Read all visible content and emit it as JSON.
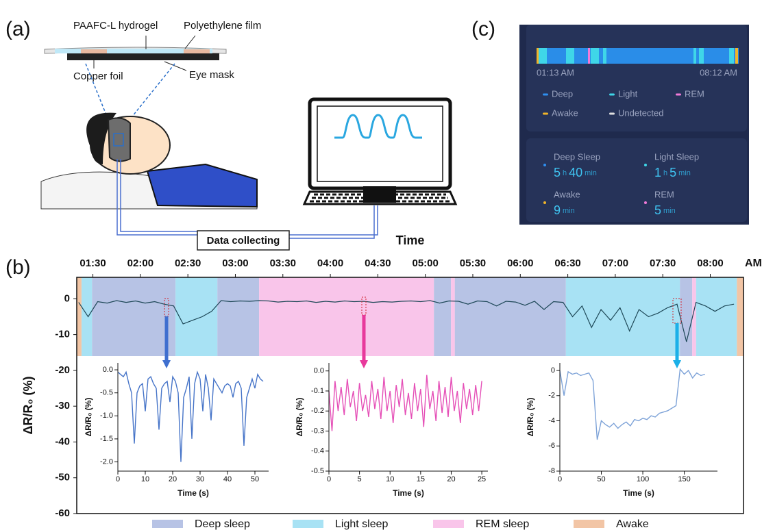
{
  "panel_labels": [
    "(a)",
    "(b)",
    "(c)"
  ],
  "illustration": {
    "labels": [
      "PAAFC-L hydrogel",
      "Polyethylene film",
      "Copper foil",
      "Eye mask"
    ],
    "data_box": "Data collecting"
  },
  "app": {
    "start": "01:13 AM",
    "end": "08:12 AM",
    "legend": [
      {
        "name": "Deep",
        "color": "#2f8ff0"
      },
      {
        "name": "Light",
        "color": "#3fd6e8"
      },
      {
        "name": "REM",
        "color": "#f07ad8"
      },
      {
        "name": "Awake",
        "color": "#f0b429"
      },
      {
        "name": "Undetected",
        "color": "#e0e0e0"
      }
    ],
    "stats": [
      {
        "label": "Deep Sleep",
        "parts": [
          5,
          "h",
          40,
          "min"
        ]
      },
      {
        "label": "Light Sleep",
        "parts": [
          1,
          "h",
          5,
          "min"
        ]
      },
      {
        "label": "Awake",
        "parts": [
          9,
          "min"
        ]
      },
      {
        "label": "REM",
        "parts": [
          5,
          "min"
        ]
      }
    ]
  },
  "chart_data": [
    {
      "type": "line",
      "x_label": "Time",
      "x_unit": "AM",
      "x_axis": "top",
      "y_label": "ΔR/R₀ (%)",
      "color": "#1d4756",
      "xlim": [
        1.33,
        8.35
      ],
      "ylim": [
        -60,
        6
      ],
      "xticks": [
        {
          "value": 1.5,
          "label": "01:30"
        },
        {
          "value": 2,
          "label": "02:00"
        },
        {
          "value": 2.5,
          "label": "02:30"
        },
        {
          "value": 3,
          "label": "03:00"
        },
        {
          "value": 3.5,
          "label": "03:30"
        },
        {
          "value": 4,
          "label": "04:00"
        },
        {
          "value": 4.5,
          "label": "04:30"
        },
        {
          "value": 5,
          "label": "05:00"
        },
        {
          "value": 5.5,
          "label": "05:30"
        },
        {
          "value": 6,
          "label": "06:00"
        },
        {
          "value": 6.5,
          "label": "06:30"
        },
        {
          "value": 7,
          "label": "07:00"
        },
        {
          "value": 7.5,
          "label": "07:30"
        },
        {
          "value": 8,
          "label": "08:00"
        }
      ],
      "yticks": [
        0,
        -10,
        -20,
        -30,
        -40,
        -50,
        -60
      ],
      "band_bottom": -16,
      "stages": [
        {
          "name": "Deep sleep",
          "color": "#b7c3e5",
          "intervals": [
            [
              1.49,
              2.37
            ],
            [
              2.81,
              3.25
            ],
            [
              5.09,
              5.27
            ],
            [
              5.31,
              6.48
            ],
            [
              7.68,
              7.81
            ]
          ]
        },
        {
          "name": "Light sleep",
          "color": "#a8e2f4",
          "intervals": [
            [
              1.38,
              1.49
            ],
            [
              2.37,
              2.81
            ],
            [
              6.48,
              7.68
            ],
            [
              7.85,
              8.28
            ]
          ]
        },
        {
          "name": "REM sleep",
          "color": "#f9c5ea",
          "intervals": [
            [
              3.25,
              5.09
            ],
            [
              5.27,
              5.31
            ],
            [
              7.81,
              7.85
            ]
          ]
        },
        {
          "name": "Awake",
          "color": "#f2c5a5",
          "intervals": [
            [
              1.33,
              1.38
            ],
            [
              8.28,
              8.35
            ]
          ]
        }
      ],
      "x": [
        1.35,
        1.45,
        1.55,
        1.65,
        1.75,
        1.85,
        1.95,
        2.05,
        2.15,
        2.25,
        2.35,
        2.45,
        2.55,
        2.65,
        2.75,
        2.85,
        2.95,
        3.05,
        3.15,
        3.25,
        3.35,
        3.45,
        3.55,
        3.65,
        3.75,
        3.85,
        3.95,
        4.05,
        4.15,
        4.25,
        4.35,
        4.45,
        4.55,
        4.65,
        4.75,
        4.85,
        4.95,
        5.05,
        5.15,
        5.25,
        5.35,
        5.45,
        5.55,
        5.65,
        5.75,
        5.85,
        5.95,
        6.05,
        6.15,
        6.25,
        6.35,
        6.45,
        6.55,
        6.65,
        6.75,
        6.85,
        6.95,
        7.05,
        7.15,
        7.25,
        7.35,
        7.45,
        7.55,
        7.65,
        7.75,
        7.85,
        7.95,
        8.05,
        8.15,
        8.25
      ],
      "values": [
        -1,
        -5,
        -0.8,
        -1.2,
        -0.5,
        -1,
        -0.6,
        -1.2,
        -0.8,
        -1.5,
        -2,
        -7,
        -6,
        -5,
        -3.5,
        -0.5,
        -0.8,
        -0.6,
        -0.7,
        -0.5,
        -0.6,
        -0.9,
        -0.7,
        -0.8,
        -0.6,
        -1,
        -0.7,
        -0.9,
        -0.6,
        -0.8,
        -0.7,
        -1,
        -0.8,
        -0.9,
        -0.7,
        -0.6,
        -0.8,
        -0.5,
        -1.2,
        -0.6,
        -0.7,
        -1.5,
        -0.6,
        -0.8,
        -2,
        -0.7,
        -0.9,
        -1.8,
        -0.7,
        -3,
        -0.8,
        -1,
        -5,
        -2,
        -8,
        -3,
        -6,
        -2.5,
        -9,
        -3,
        -5,
        -4,
        -2.5,
        -1.5,
        -12,
        -1,
        -2,
        -3.5,
        -2,
        -1.5
      ]
    },
    {
      "type": "line",
      "x_label": "Time (s)",
      "y_label": "ΔR/R₀ (%)",
      "color": "#4674c8",
      "xlim": [
        0,
        55
      ],
      "ylim": [
        -2.2,
        0.15
      ],
      "xticks": [
        0,
        10,
        20,
        30,
        40,
        50
      ],
      "yticks": [
        {
          "value": 0,
          "label": "0.0"
        },
        -0.5,
        {
          "value": -1,
          "label": "-1.0"
        },
        -1.5,
        {
          "value": -2,
          "label": "-2.0"
        }
      ],
      "x": [
        0,
        1,
        2,
        3,
        4,
        5,
        6,
        7,
        8,
        9,
        10,
        11,
        12,
        13,
        14,
        15,
        16,
        17,
        18,
        19,
        20,
        21,
        22,
        23,
        24,
        25,
        26,
        27,
        28,
        29,
        30,
        31,
        32,
        33,
        34,
        35,
        36,
        37,
        38,
        39,
        40,
        41,
        42,
        43,
        44,
        45,
        46,
        47,
        48,
        49,
        50,
        51,
        52,
        53
      ],
      "values": [
        -0.05,
        -0.1,
        -0.15,
        -0.05,
        -0.3,
        -0.5,
        -1.6,
        -0.5,
        -0.35,
        -0.3,
        -0.9,
        -0.2,
        -0.15,
        -0.3,
        -0.4,
        -1.3,
        -0.4,
        -0.3,
        -0.25,
        -0.7,
        -0.15,
        -0.25,
        -0.5,
        -2.0,
        -0.6,
        -0.4,
        -0.15,
        -1.5,
        -0.3,
        -0.05,
        -0.2,
        -0.9,
        -0.1,
        -0.4,
        -1.1,
        -0.2,
        -0.3,
        -0.4,
        -0.5,
        -0.35,
        -0.3,
        -0.35,
        -0.6,
        -0.3,
        -0.25,
        -0.4,
        -1.65,
        -0.6,
        -0.4,
        -0.2,
        -0.4,
        -0.1,
        -0.2,
        -0.25
      ]
    },
    {
      "type": "line",
      "x_label": "Time (s)",
      "y_label": "ΔR/R₀ (%)",
      "color": "#e54fb7",
      "xlim": [
        0,
        26
      ],
      "ylim": [
        -0.5,
        0.04
      ],
      "xticks": [
        0,
        5,
        10,
        15,
        20,
        25
      ],
      "yticks": [
        {
          "value": 0,
          "label": "0.0"
        },
        -0.1,
        -0.2,
        -0.3,
        -0.4,
        -0.5
      ],
      "x": [
        0,
        0.5,
        1,
        1.5,
        2,
        2.5,
        3,
        3.5,
        4,
        4.5,
        5,
        5.5,
        6,
        6.5,
        7,
        7.5,
        8,
        8.5,
        9,
        9.5,
        10,
        10.5,
        11,
        11.5,
        12,
        12.5,
        13,
        13.5,
        14,
        14.5,
        15,
        15.5,
        16,
        16.5,
        17,
        17.5,
        18,
        18.5,
        19,
        19.5,
        20,
        20.5,
        21,
        21.5,
        22,
        22.5,
        23,
        23.5,
        24,
        24.5,
        25
      ],
      "values": [
        -0.1,
        -0.3,
        -0.05,
        -0.2,
        -0.08,
        -0.22,
        -0.04,
        -0.18,
        -0.1,
        -0.25,
        -0.06,
        -0.2,
        -0.12,
        -0.23,
        -0.05,
        -0.19,
        -0.09,
        -0.24,
        -0.03,
        -0.2,
        -0.1,
        -0.26,
        -0.07,
        -0.18,
        -0.04,
        -0.22,
        -0.11,
        -0.24,
        -0.06,
        -0.2,
        -0.09,
        -0.28,
        -0.02,
        -0.19,
        -0.1,
        -0.25,
        -0.05,
        -0.21,
        -0.08,
        -0.23,
        -0.03,
        -0.2,
        -0.1,
        -0.26,
        -0.06,
        -0.19,
        -0.09,
        -0.22,
        -0.07,
        -0.2,
        -0.05
      ]
    },
    {
      "type": "line",
      "x_label": "Time (s)",
      "y_label": "ΔR/R₀ (%)",
      "color": "#7ea3d8",
      "xlim": [
        0,
        190
      ],
      "ylim": [
        -8,
        0.6
      ],
      "xticks": [
        0,
        50,
        100,
        150
      ],
      "yticks": [
        0,
        -2,
        -4,
        -6,
        -8
      ],
      "x": [
        0,
        5,
        10,
        15,
        20,
        25,
        30,
        35,
        40,
        45,
        50,
        55,
        60,
        65,
        70,
        75,
        80,
        85,
        90,
        95,
        100,
        105,
        110,
        115,
        120,
        125,
        130,
        135,
        140,
        145,
        150,
        155,
        160,
        165,
        170,
        175
      ],
      "values": [
        0,
        -2,
        -0.1,
        -0.3,
        -0.2,
        -0.4,
        -0.3,
        -0.2,
        -0.8,
        -5.5,
        -4,
        -4.3,
        -4.5,
        -4.2,
        -4.6,
        -4.3,
        -4.1,
        -4.4,
        -3.9,
        -4.0,
        -3.8,
        -3.9,
        -3.6,
        -3.7,
        -3.4,
        -3.3,
        -3.2,
        -3.0,
        -2.8,
        0.1,
        -0.3,
        0,
        -0.6,
        -0.2,
        -0.4,
        -0.3
      ]
    }
  ]
}
